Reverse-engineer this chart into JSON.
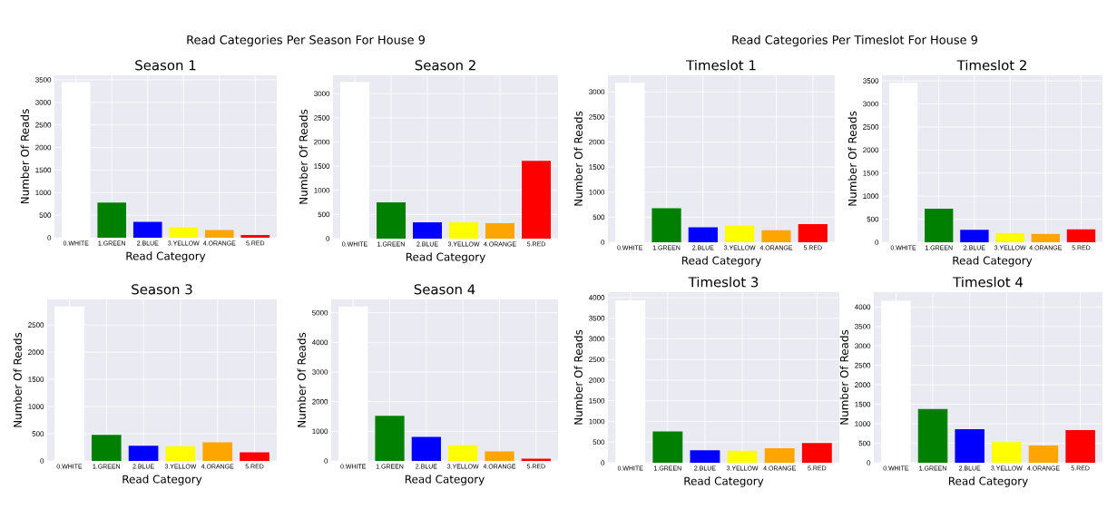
{
  "chart_data": [
    {
      "type": "bar",
      "title": "Season 1",
      "annotations": [
        "Read Categories Per Season For House 9"
      ],
      "xlabel": "Read Category",
      "ylabel": "Number Of Reads",
      "categories": [
        "0.WHITE",
        "1.GREEN",
        "2.BLUE",
        "3.YELLOW",
        "4.ORANGE",
        "5.RED"
      ],
      "values": [
        3450,
        780,
        350,
        230,
        170,
        60
      ],
      "colors": [
        "#ffffff",
        "#008000",
        "#0000ff",
        "#ffff00",
        "#ffa500",
        "#ff0000"
      ],
      "ylim": [
        0,
        3600
      ],
      "yticks": [
        0,
        500,
        1000,
        1500,
        2000,
        2500,
        3000,
        3500
      ],
      "grid": true
    },
    {
      "type": "bar",
      "title": "Season 2",
      "xlabel": "Read Category",
      "ylabel": "Number Of Reads",
      "categories": [
        "0.WHITE",
        "1.GREEN",
        "2.BLUE",
        "3.YELLOW",
        "4.ORANGE",
        "5.RED"
      ],
      "values": [
        3240,
        750,
        340,
        340,
        320,
        1610
      ],
      "colors": [
        "#ffffff",
        "#008000",
        "#0000ff",
        "#ffff00",
        "#ffa500",
        "#ff0000"
      ],
      "ylim": [
        0,
        3380
      ],
      "yticks": [
        0,
        500,
        1000,
        1500,
        2000,
        2500,
        3000
      ],
      "grid": true
    },
    {
      "type": "bar",
      "title": "Season 3",
      "xlabel": "Read Category",
      "ylabel": "Number Of Reads",
      "categories": [
        "0.WHITE",
        "1.GREEN",
        "2.BLUE",
        "3.YELLOW",
        "4.ORANGE",
        "5.RED"
      ],
      "values": [
        2840,
        480,
        280,
        270,
        340,
        160
      ],
      "colors": [
        "#ffffff",
        "#008000",
        "#0000ff",
        "#ffff00",
        "#ffa500",
        "#ff0000"
      ],
      "ylim": [
        0,
        2970
      ],
      "yticks": [
        0,
        500,
        1000,
        1500,
        2000,
        2500
      ],
      "grid": true
    },
    {
      "type": "bar",
      "title": "Season 4",
      "xlabel": "Read Category",
      "ylabel": "Number Of Reads",
      "categories": [
        "0.WHITE",
        "1.GREEN",
        "2.BLUE",
        "3.YELLOW",
        "4.ORANGE",
        "5.RED"
      ],
      "values": [
        5210,
        1520,
        810,
        530,
        320,
        80
      ],
      "colors": [
        "#ffffff",
        "#008000",
        "#0000ff",
        "#ffff00",
        "#ffa500",
        "#ff0000"
      ],
      "ylim": [
        0,
        5450
      ],
      "yticks": [
        0,
        1000,
        2000,
        3000,
        4000,
        5000
      ],
      "grid": true
    },
    {
      "type": "bar",
      "title": "Timeslot 1",
      "annotations": [
        "Read Categories Per Timeslot For House 9"
      ],
      "xlabel": "Read Category",
      "ylabel": "Number Of Reads",
      "categories": [
        "0.WHITE",
        "1.GREEN",
        "2.BLUE",
        "3.YELLOW",
        "4.ORANGE",
        "5.RED"
      ],
      "values": [
        3180,
        680,
        300,
        340,
        240,
        360
      ],
      "colors": [
        "#ffffff",
        "#008000",
        "#0000ff",
        "#ffff00",
        "#ffa500",
        "#ff0000"
      ],
      "ylim": [
        0,
        3330
      ],
      "yticks": [
        0,
        500,
        1000,
        1500,
        2000,
        2500,
        3000
      ],
      "grid": true
    },
    {
      "type": "bar",
      "title": "Timeslot 2",
      "xlabel": "Read Category",
      "ylabel": "Number Of Reads",
      "categories": [
        "0.WHITE",
        "1.GREEN",
        "2.BLUE",
        "3.YELLOW",
        "4.ORANGE",
        "5.RED"
      ],
      "values": [
        3460,
        730,
        270,
        200,
        180,
        280
      ],
      "colors": [
        "#ffffff",
        "#008000",
        "#0000ff",
        "#ffff00",
        "#ffa500",
        "#ff0000"
      ],
      "ylim": [
        0,
        3620
      ],
      "yticks": [
        0,
        500,
        1000,
        1500,
        2000,
        2500,
        3000,
        3500
      ],
      "grid": true
    },
    {
      "type": "bar",
      "title": "Timeslot 3",
      "xlabel": "Read Category",
      "ylabel": "Number Of Reads",
      "categories": [
        "0.WHITE",
        "1.GREEN",
        "2.BLUE",
        "3.YELLOW",
        "4.ORANGE",
        "5.RED"
      ],
      "values": [
        3930,
        760,
        300,
        290,
        350,
        480
      ],
      "colors": [
        "#ffffff",
        "#008000",
        "#0000ff",
        "#ffff00",
        "#ffa500",
        "#ff0000"
      ],
      "ylim": [
        0,
        4130
      ],
      "yticks": [
        0,
        500,
        1000,
        1500,
        2000,
        2500,
        3000,
        3500,
        4000
      ],
      "grid": true
    },
    {
      "type": "bar",
      "title": "Timeslot 4",
      "xlabel": "Read Category",
      "ylabel": "Number Of Reads",
      "categories": [
        "0.WHITE",
        "1.GREEN",
        "2.BLUE",
        "3.YELLOW",
        "4.ORANGE",
        "5.RED"
      ],
      "values": [
        4160,
        1380,
        860,
        530,
        440,
        840
      ],
      "colors": [
        "#ffffff",
        "#008000",
        "#0000ff",
        "#ffff00",
        "#ffa500",
        "#ff0000"
      ],
      "ylim": [
        0,
        4380
      ],
      "yticks": [
        0,
        500,
        1000,
        1500,
        2000,
        2500,
        3000,
        3500,
        4000
      ],
      "grid": true
    }
  ]
}
